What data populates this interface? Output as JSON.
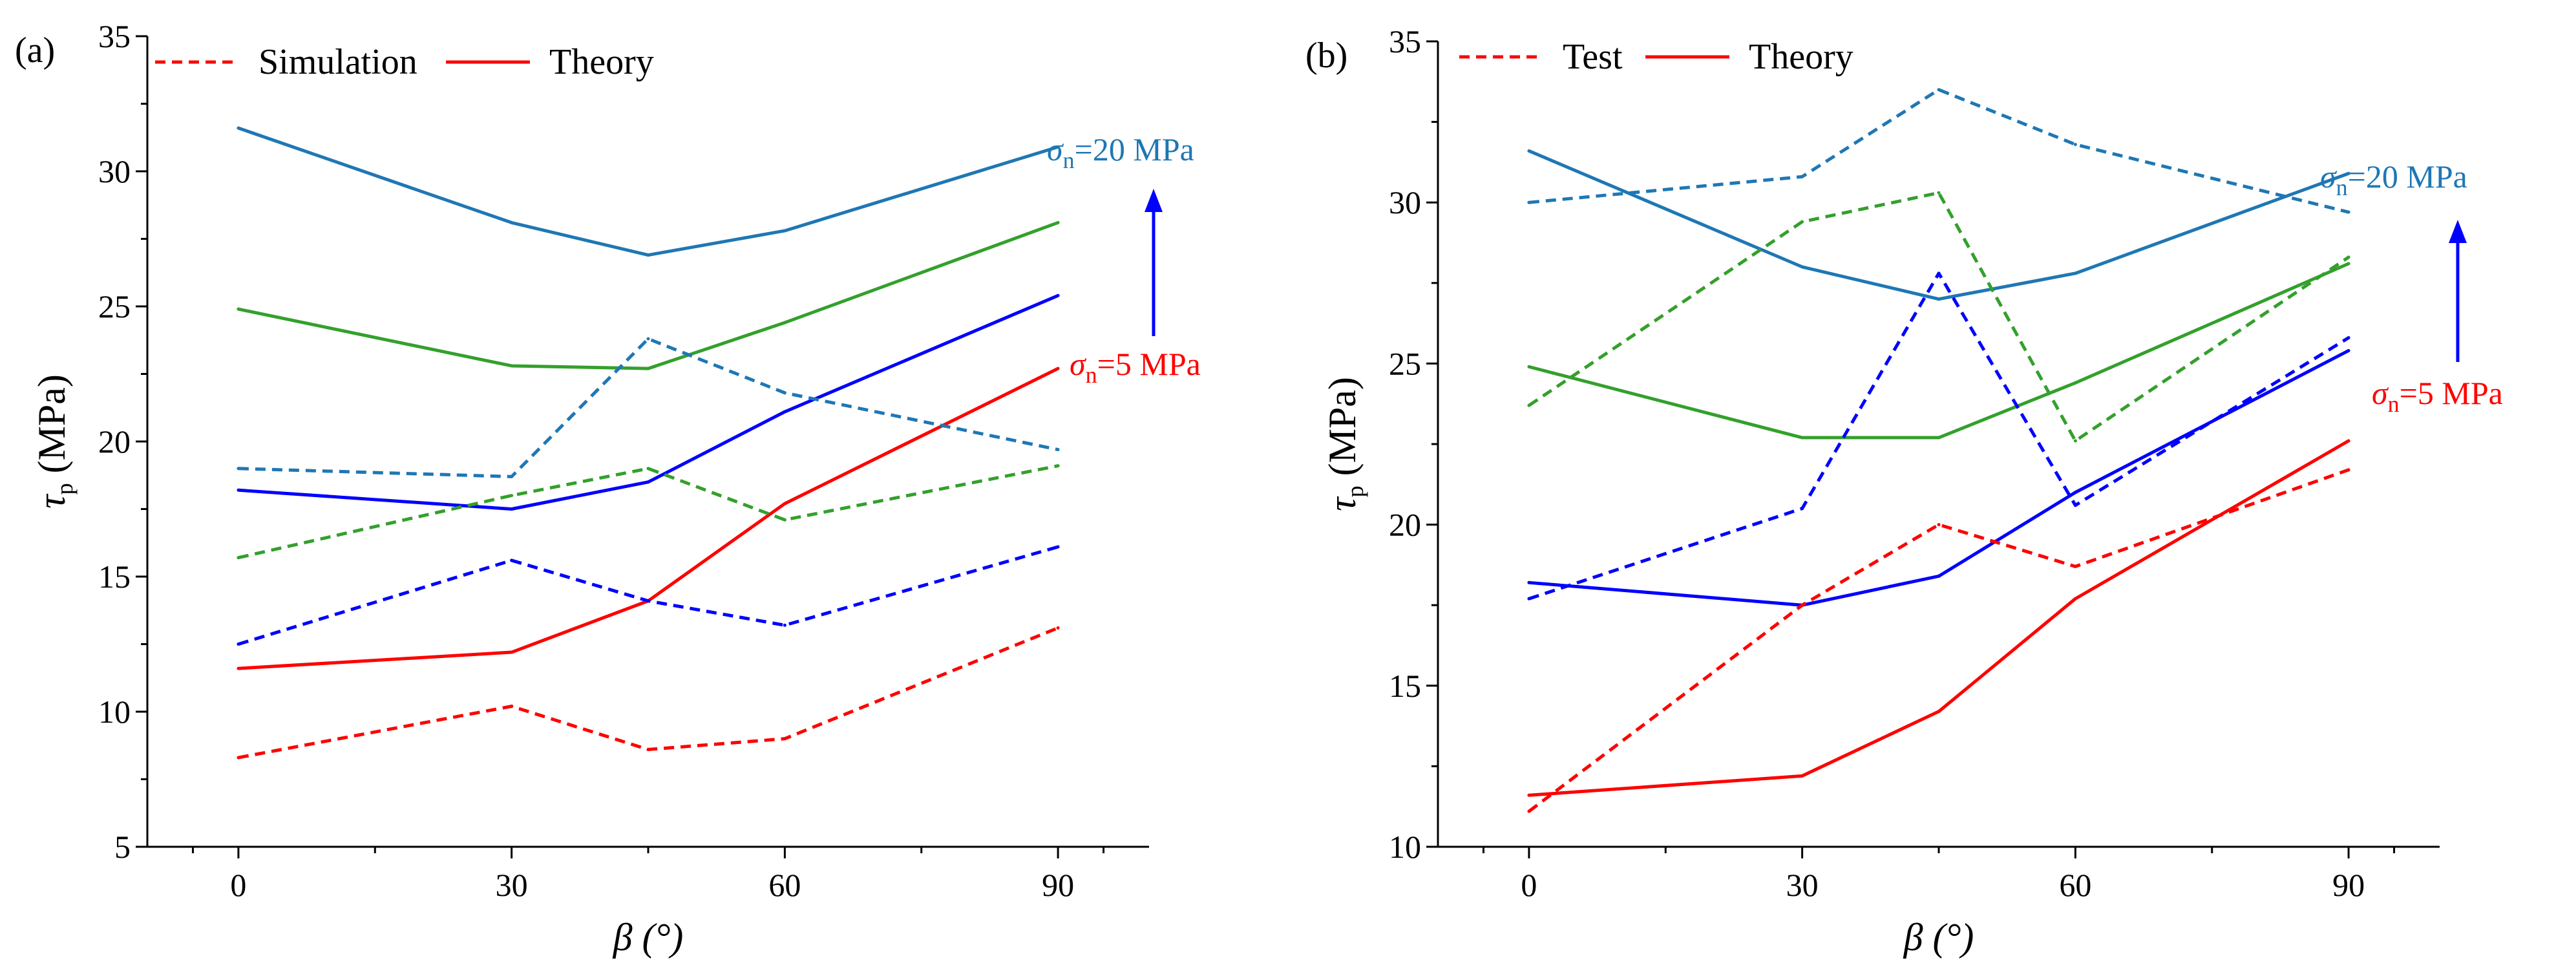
{
  "colors": {
    "red": "#ff0000",
    "blue": "#0000ff",
    "green": "#33a02c",
    "steel": "#1f77b4",
    "axis": "#000000"
  },
  "chart_data": [
    {
      "type": "line",
      "panel_label": "(a)",
      "xlabel": "β (°)",
      "ylabel": "τp (MPa)",
      "x": [
        0,
        30,
        45,
        60,
        90
      ],
      "xticks": [
        0,
        30,
        60,
        90
      ],
      "yticks": [
        5,
        10,
        15,
        20,
        25,
        30,
        35
      ],
      "xlim": [
        -10,
        100
      ],
      "ylim": [
        5,
        35
      ],
      "legend": [
        {
          "label": "Simulation",
          "style": "dashed",
          "color": "#ff0000"
        },
        {
          "label": "Theory",
          "style": "solid",
          "color": "#ff0000"
        }
      ],
      "legend_position": "top-left",
      "series": [
        {
          "style": "solid",
          "color": "#ff0000",
          "values": [
            11.6,
            12.2,
            14.1,
            17.7,
            22.7
          ]
        },
        {
          "style": "solid",
          "color": "#0000ff",
          "values": [
            18.2,
            17.5,
            18.5,
            21.1,
            25.4
          ]
        },
        {
          "style": "solid",
          "color": "#33a02c",
          "values": [
            24.9,
            22.8,
            22.7,
            24.4,
            28.1
          ]
        },
        {
          "style": "solid",
          "color": "#1f77b4",
          "values": [
            31.6,
            28.1,
            26.9,
            27.8,
            30.9
          ]
        },
        {
          "style": "dashed",
          "color": "#ff0000",
          "values": [
            8.3,
            10.2,
            8.6,
            9.0,
            13.1
          ]
        },
        {
          "style": "dashed",
          "color": "#0000ff",
          "values": [
            12.5,
            15.6,
            14.1,
            13.2,
            16.1
          ]
        },
        {
          "style": "dashed",
          "color": "#33a02c",
          "values": [
            15.7,
            18.0,
            19.0,
            17.1,
            19.1
          ]
        },
        {
          "style": "dashed",
          "color": "#1f77b4",
          "values": [
            19.0,
            18.7,
            23.8,
            21.8,
            19.7
          ]
        }
      ],
      "annotations": [
        {
          "symbol": "σ",
          "sub": "n",
          "text": "=20 MPa",
          "color": "#1f77b4"
        },
        {
          "symbol": "σ",
          "sub": "n",
          "text": "=5 MPa",
          "color": "#ff0000"
        }
      ]
    },
    {
      "type": "line",
      "panel_label": "(b)",
      "xlabel": "β (°)",
      "ylabel": "τp (MPa)",
      "x": [
        0,
        30,
        45,
        60,
        90
      ],
      "xticks": [
        0,
        30,
        60,
        90
      ],
      "yticks": [
        10,
        15,
        20,
        25,
        30,
        35
      ],
      "xlim": [
        -10,
        100
      ],
      "ylim": [
        10,
        35
      ],
      "legend": [
        {
          "label": "Test",
          "style": "dashed",
          "color": "#ff0000"
        },
        {
          "label": "Theory",
          "style": "solid",
          "color": "#ff0000"
        }
      ],
      "legend_position": "top-left",
      "series": [
        {
          "style": "solid",
          "color": "#ff0000",
          "values": [
            11.6,
            12.2,
            14.2,
            17.7,
            22.6
          ]
        },
        {
          "style": "solid",
          "color": "#0000ff",
          "values": [
            18.2,
            17.5,
            18.4,
            21.0,
            25.4
          ]
        },
        {
          "style": "solid",
          "color": "#33a02c",
          "values": [
            24.9,
            22.7,
            22.7,
            24.4,
            28.1
          ]
        },
        {
          "style": "solid",
          "color": "#1f77b4",
          "values": [
            31.6,
            28.0,
            27.0,
            27.8,
            30.9
          ]
        },
        {
          "style": "dashed",
          "color": "#ff0000",
          "values": [
            11.1,
            17.5,
            20.0,
            18.7,
            21.7
          ]
        },
        {
          "style": "dashed",
          "color": "#0000ff",
          "values": [
            17.7,
            20.5,
            27.8,
            20.6,
            25.8
          ]
        },
        {
          "style": "dashed",
          "color": "#33a02c",
          "values": [
            23.7,
            29.4,
            30.3,
            22.6,
            28.3
          ]
        },
        {
          "style": "dashed",
          "color": "#1f77b4",
          "values": [
            30.0,
            30.8,
            33.5,
            31.8,
            29.7
          ]
        }
      ],
      "annotations": [
        {
          "symbol": "σ",
          "sub": "n",
          "text": "=20 MPa",
          "color": "#1f77b4"
        },
        {
          "symbol": "σ",
          "sub": "n",
          "text": "=5 MPa",
          "color": "#ff0000"
        }
      ]
    }
  ]
}
